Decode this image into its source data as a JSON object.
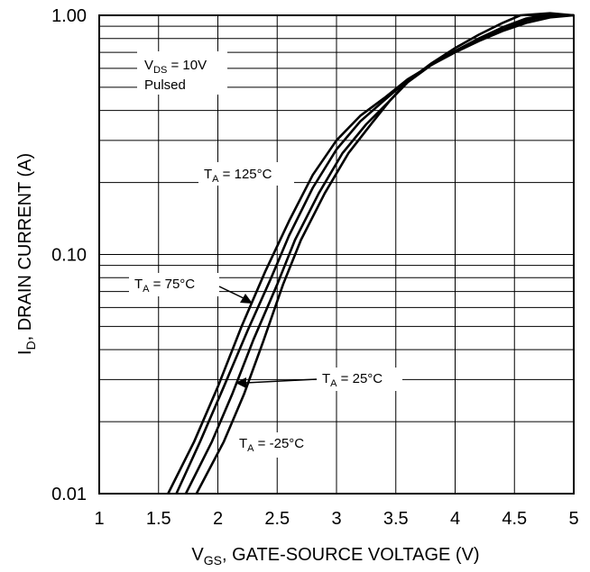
{
  "chart_data": {
    "type": "line",
    "x_axis": {
      "label_main": "V",
      "label_sub": "GS",
      "label_rest": ", GATE-SOURCE VOLTAGE (V)",
      "range": [
        1,
        5
      ],
      "ticks": [
        1,
        1.5,
        2,
        2.5,
        3,
        3.5,
        4,
        4.5,
        5
      ],
      "tick_labels": [
        "1",
        "1.5",
        "2",
        "2.5",
        "3",
        "3.5",
        "4",
        "4.5",
        "5"
      ]
    },
    "y_axis": {
      "label_main": "I",
      "label_sub": "D",
      "label_rest": ", DRAIN CURRENT (A)",
      "scale": "log",
      "range": [
        0.01,
        1.0
      ],
      "ticks": [
        0.01,
        0.1,
        1.0
      ],
      "tick_labels": [
        "0.01",
        "0.10",
        "1.00"
      ]
    },
    "grid": true,
    "conditions": {
      "line1_main": "V",
      "line1_sub": "DS",
      "line1_rest": " = 10V",
      "line2": "Pulsed"
    },
    "series": [
      {
        "name": "T_A = 125°C",
        "label_main": "T",
        "label_sub": "A",
        "label_rest": " = 125°C",
        "points": [
          [
            1.58,
            0.01
          ],
          [
            1.8,
            0.0165
          ],
          [
            2.0,
            0.028
          ],
          [
            2.2,
            0.05
          ],
          [
            2.4,
            0.085
          ],
          [
            2.6,
            0.138
          ],
          [
            2.8,
            0.215
          ],
          [
            3.0,
            0.3
          ],
          [
            3.2,
            0.38
          ],
          [
            3.4,
            0.45
          ],
          [
            3.6,
            0.54
          ],
          [
            3.8,
            0.62
          ],
          [
            4.0,
            0.7
          ],
          [
            4.2,
            0.78
          ],
          [
            4.4,
            0.86
          ],
          [
            4.6,
            0.93
          ],
          [
            4.8,
            0.98
          ],
          [
            5.0,
            1.0
          ]
        ]
      },
      {
        "name": "T_A = 75°C",
        "label_main": "T",
        "label_sub": "A",
        "label_rest": " = 75°C",
        "points": [
          [
            1.65,
            0.01
          ],
          [
            1.85,
            0.0165
          ],
          [
            2.05,
            0.028
          ],
          [
            2.25,
            0.048
          ],
          [
            2.45,
            0.08
          ],
          [
            2.6,
            0.12
          ],
          [
            2.8,
            0.19
          ],
          [
            3.0,
            0.275
          ],
          [
            3.2,
            0.36
          ],
          [
            3.4,
            0.44
          ],
          [
            3.6,
            0.535
          ],
          [
            3.8,
            0.625
          ],
          [
            4.0,
            0.71
          ],
          [
            4.2,
            0.79
          ],
          [
            4.4,
            0.87
          ],
          [
            4.6,
            0.95
          ],
          [
            4.8,
            1.0
          ],
          [
            5.0,
            1.0
          ]
        ]
      },
      {
        "name": "T_A = 25°C",
        "label_main": "T",
        "label_sub": "A",
        "label_rest": " = 25°C",
        "points": [
          [
            1.73,
            0.01
          ],
          [
            1.95,
            0.0165
          ],
          [
            2.12,
            0.026
          ],
          [
            2.3,
            0.044
          ],
          [
            2.5,
            0.075
          ],
          [
            2.65,
            0.115
          ],
          [
            2.85,
            0.18
          ],
          [
            3.05,
            0.265
          ],
          [
            3.25,
            0.35
          ],
          [
            3.45,
            0.44
          ],
          [
            3.6,
            0.525
          ],
          [
            3.8,
            0.62
          ],
          [
            4.0,
            0.71
          ],
          [
            4.2,
            0.8
          ],
          [
            4.4,
            0.89
          ],
          [
            4.6,
            0.97
          ],
          [
            4.8,
            1.01
          ],
          [
            5.0,
            1.0
          ]
        ]
      },
      {
        "name": "T_A = -25°C",
        "label_main": "T",
        "label_sub": "A",
        "label_rest": " = -25°C",
        "points": [
          [
            1.82,
            0.01
          ],
          [
            2.05,
            0.0165
          ],
          [
            2.22,
            0.026
          ],
          [
            2.38,
            0.043
          ],
          [
            2.55,
            0.075
          ],
          [
            2.7,
            0.115
          ],
          [
            2.9,
            0.18
          ],
          [
            3.1,
            0.265
          ],
          [
            3.3,
            0.355
          ],
          [
            3.45,
            0.44
          ],
          [
            3.6,
            0.53
          ],
          [
            3.8,
            0.63
          ],
          [
            4.0,
            0.73
          ],
          [
            4.2,
            0.83
          ],
          [
            4.4,
            0.93
          ],
          [
            4.55,
            1.0
          ],
          [
            4.8,
            1.02
          ],
          [
            5.0,
            1.0
          ]
        ]
      }
    ]
  }
}
